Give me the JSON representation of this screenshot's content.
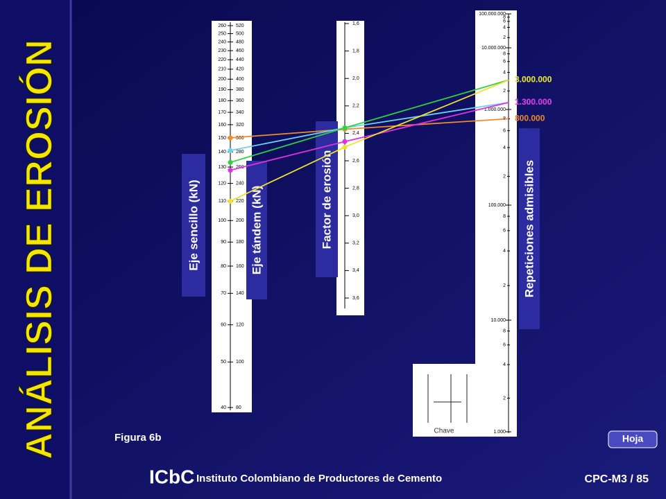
{
  "title": "ANÁLISIS DE EROSIÓN",
  "figure_label": "Figura 6b",
  "axis_titles": {
    "single": "Eje sencillo (kN)",
    "tandem": "Eje tándem (kN)",
    "erosion": "Factor de erosión",
    "repetitions": "Repeticiones admisibles"
  },
  "single_ticks": [
    260,
    250,
    240,
    230,
    220,
    210,
    200,
    190,
    180,
    170,
    160,
    150,
    140,
    130,
    120,
    110,
    100,
    90,
    80,
    70,
    60,
    50,
    40
  ],
  "tandem_ticks": [
    520,
    500,
    480,
    460,
    440,
    420,
    400,
    380,
    360,
    340,
    320,
    300,
    280,
    260,
    240,
    220,
    200,
    180,
    160,
    140,
    120,
    100,
    80
  ],
  "erosion_ticks": [
    {
      "value": 1.6,
      "label": "1,6"
    },
    {
      "value": 1.8,
      "label": "1,8"
    },
    {
      "value": 2.0,
      "label": "2,0"
    },
    {
      "value": 2.2,
      "label": "2,2"
    },
    {
      "value": 2.4,
      "label": "2,4"
    },
    {
      "value": 2.6,
      "label": "2,6"
    },
    {
      "value": 2.8,
      "label": "2,8"
    },
    {
      "value": 3.0,
      "label": "3,0"
    },
    {
      "value": 3.2,
      "label": "3,2"
    },
    {
      "value": 3.4,
      "label": "3,4"
    },
    {
      "value": 3.6,
      "label": "3,6"
    }
  ],
  "repetition_ticks": [
    {
      "value": 100000000,
      "label": "100.000.000"
    },
    {
      "value": 10000000,
      "label": "10.000.000"
    },
    {
      "value": 1000000,
      "label": "1.000.000"
    },
    {
      "value": 100000,
      "label": "100.000"
    },
    {
      "value": 10000,
      "label": "10.000"
    },
    {
      "value": 1000,
      "label": "1.000"
    }
  ],
  "repetition_minor_ticks": [
    8,
    6,
    4,
    2
  ],
  "lines": [
    {
      "color": "#f08a2a",
      "single": 150,
      "erosion": 2.37,
      "repetitions": {
        "value": 800000,
        "label": "800.000"
      }
    },
    {
      "color": "#6fd0f0",
      "single": 141,
      "erosion": 2.36,
      "repetitions": {
        "value": 1300000,
        "label": "1.300.000"
      }
    },
    {
      "color": "#30d040",
      "single": 133,
      "erosion": 2.36,
      "repetitions": {
        "value": 3000000,
        "label": "3.000.000"
      }
    },
    {
      "color": "#e030e0",
      "single": 128,
      "erosion": 2.46,
      "repetitions": {
        "value": 1300000,
        "label": "1.300.000"
      }
    },
    {
      "color": "#f0e030",
      "single": 110,
      "erosion": 2.5,
      "repetitions": {
        "value": 3000000,
        "label": "3.000.000"
      }
    }
  ],
  "sketch_label": "Chave",
  "button": "Hoja",
  "footer": {
    "logo": "ICbC",
    "institute": "Instituto Colombiano de Productores de Cemento",
    "code": "CPC-M3 / 85"
  }
}
